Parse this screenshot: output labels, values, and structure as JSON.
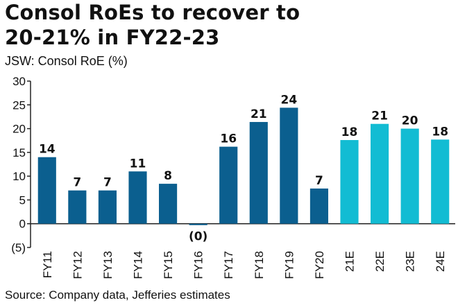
{
  "title_line1": "Consol RoEs to recover to",
  "title_line2": "20-21% in FY22-23",
  "subtitle": "JSW: Consol RoE (%)",
  "source": "Source: Company data, Jefferies estimates",
  "colors": {
    "actual": "#0b5f8f",
    "estimate": "#12bcd3",
    "axis": "#222222"
  },
  "chart_data": {
    "type": "bar",
    "categories": [
      "FY11",
      "FY12",
      "FY13",
      "FY14",
      "FY15",
      "FY16",
      "FY17",
      "FY18",
      "FY19",
      "FY20",
      "21E",
      "22E",
      "23E",
      "24E"
    ],
    "values": [
      14,
      7,
      7,
      11,
      8.4,
      -0.3,
      16.2,
      21.4,
      24.4,
      7.4,
      17.6,
      21,
      20,
      17.7
    ],
    "data_labels": [
      "14",
      "7",
      "7",
      "11",
      "8",
      "(0)",
      "16",
      "21",
      "24",
      "7",
      "18",
      "21",
      "20",
      "18"
    ],
    "estimate_flags": [
      false,
      false,
      false,
      false,
      false,
      false,
      false,
      false,
      false,
      false,
      true,
      true,
      true,
      true
    ],
    "ylim": [
      -5,
      30
    ],
    "yticks": [
      -5,
      0,
      5,
      10,
      15,
      20,
      25,
      30
    ],
    "ytick_labels": [
      "(5)",
      "0",
      "5",
      "10",
      "15",
      "20",
      "25",
      "30"
    ],
    "xlabel": "",
    "ylabel": "",
    "grid": false
  }
}
